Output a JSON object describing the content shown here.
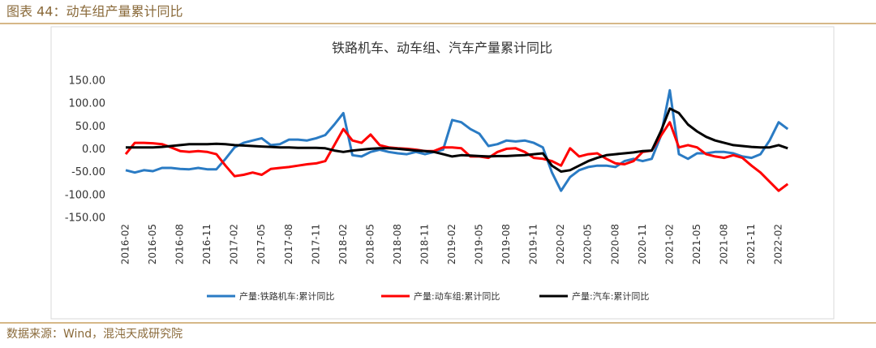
{
  "header": {
    "title": "图表 44：动车组产量累计同比"
  },
  "source": "数据来源：Wind，混沌天成研究院",
  "chart_data": {
    "type": "line",
    "title": "铁路机车、动车组、汽车产量累计同比",
    "categories": [
      "2016-02",
      null,
      null,
      "2016-05",
      null,
      null,
      "2016-08",
      null,
      null,
      "2016-11",
      null,
      null,
      "2017-02",
      null,
      null,
      "2017-05",
      null,
      null,
      "2017-08",
      null,
      null,
      "2017-11",
      null,
      null,
      "2018-02",
      null,
      null,
      "2018-05",
      null,
      null,
      "2018-08",
      null,
      null,
      "2018-11",
      null,
      null,
      "2019-02",
      null,
      null,
      "2019-05",
      null,
      null,
      "2019-08",
      null,
      null,
      "2019-11",
      null,
      null,
      "2020-02",
      null,
      null,
      "2020-05",
      null,
      null,
      "2020-08",
      null,
      null,
      "2020-11",
      null,
      null,
      "2021-02",
      null,
      null,
      "2021-05",
      null,
      null,
      "2021-08",
      null,
      null,
      "2021-11",
      null,
      null,
      "2022-02",
      null
    ],
    "series": [
      {
        "name": "产量:铁路机车:累计同比",
        "color": "#2a7bc4",
        "values": [
          -45,
          -50,
          -45,
          -47,
          -40,
          -40,
          -42,
          -43,
          -40,
          -43,
          -43,
          -20,
          5,
          15,
          20,
          25,
          10,
          12,
          22,
          22,
          20,
          25,
          32,
          55,
          80,
          -12,
          -15,
          -5,
          0,
          -5,
          -8,
          -10,
          -5,
          -10,
          -5,
          0,
          65,
          60,
          45,
          35,
          8,
          12,
          20,
          18,
          20,
          15,
          5,
          -50,
          -90,
          -60,
          -45,
          -38,
          -35,
          -35,
          -38,
          -25,
          -20,
          -25,
          -20,
          30,
          130,
          -10,
          -20,
          -8,
          -8,
          -5,
          -5,
          -8,
          -15,
          -18,
          -10,
          20,
          60,
          45
        ]
      },
      {
        "name": "产量:动车组:累计同比",
        "color": "#ff0000",
        "values": [
          -10,
          15,
          15,
          14,
          12,
          5,
          -3,
          -5,
          -3,
          -5,
          -10,
          -35,
          -58,
          -55,
          -50,
          -55,
          -42,
          -40,
          -38,
          -35,
          -32,
          -30,
          -25,
          10,
          45,
          20,
          15,
          33,
          10,
          5,
          3,
          2,
          0,
          -3,
          -3,
          5,
          5,
          3,
          -15,
          -15,
          -18,
          -5,
          2,
          3,
          -5,
          -18,
          -20,
          -25,
          -35,
          3,
          -15,
          -10,
          -8,
          -20,
          -30,
          -32,
          -25,
          -5,
          -2,
          30,
          60,
          5,
          10,
          5,
          -10,
          -15,
          -18,
          -12,
          -18,
          -35,
          -50,
          -70,
          -90,
          -75
        ]
      },
      {
        "name": "产量:汽车:累计同比",
        "color": "#000000",
        "values": [
          5,
          5,
          5,
          5,
          6,
          8,
          10,
          12,
          12,
          12,
          13,
          12,
          10,
          9,
          8,
          7,
          6,
          5,
          5,
          4,
          4,
          4,
          3,
          -2,
          -5,
          -2,
          0,
          2,
          3,
          3,
          2,
          0,
          -2,
          -3,
          -5,
          -10,
          -15,
          -12,
          -13,
          -14,
          -15,
          -14,
          -14,
          -13,
          -12,
          -10,
          -8,
          -35,
          -48,
          -45,
          -35,
          -25,
          -18,
          -12,
          -10,
          -8,
          -6,
          -3,
          -2,
          40,
          90,
          80,
          55,
          40,
          28,
          20,
          15,
          10,
          8,
          6,
          5,
          5,
          10,
          3
        ]
      }
    ],
    "ylim": [
      -150,
      150
    ],
    "yticks": [
      {
        "value": -150,
        "label": "-150.00"
      },
      {
        "value": -100,
        "label": "-100.00"
      },
      {
        "value": -50,
        "label": "-50.00"
      },
      {
        "value": 0,
        "label": "0.00"
      },
      {
        "value": 50,
        "label": "50.00"
      },
      {
        "value": 100,
        "label": "100.00"
      },
      {
        "value": 150,
        "label": "150.00"
      }
    ],
    "grid": false,
    "legend": "bottom"
  }
}
